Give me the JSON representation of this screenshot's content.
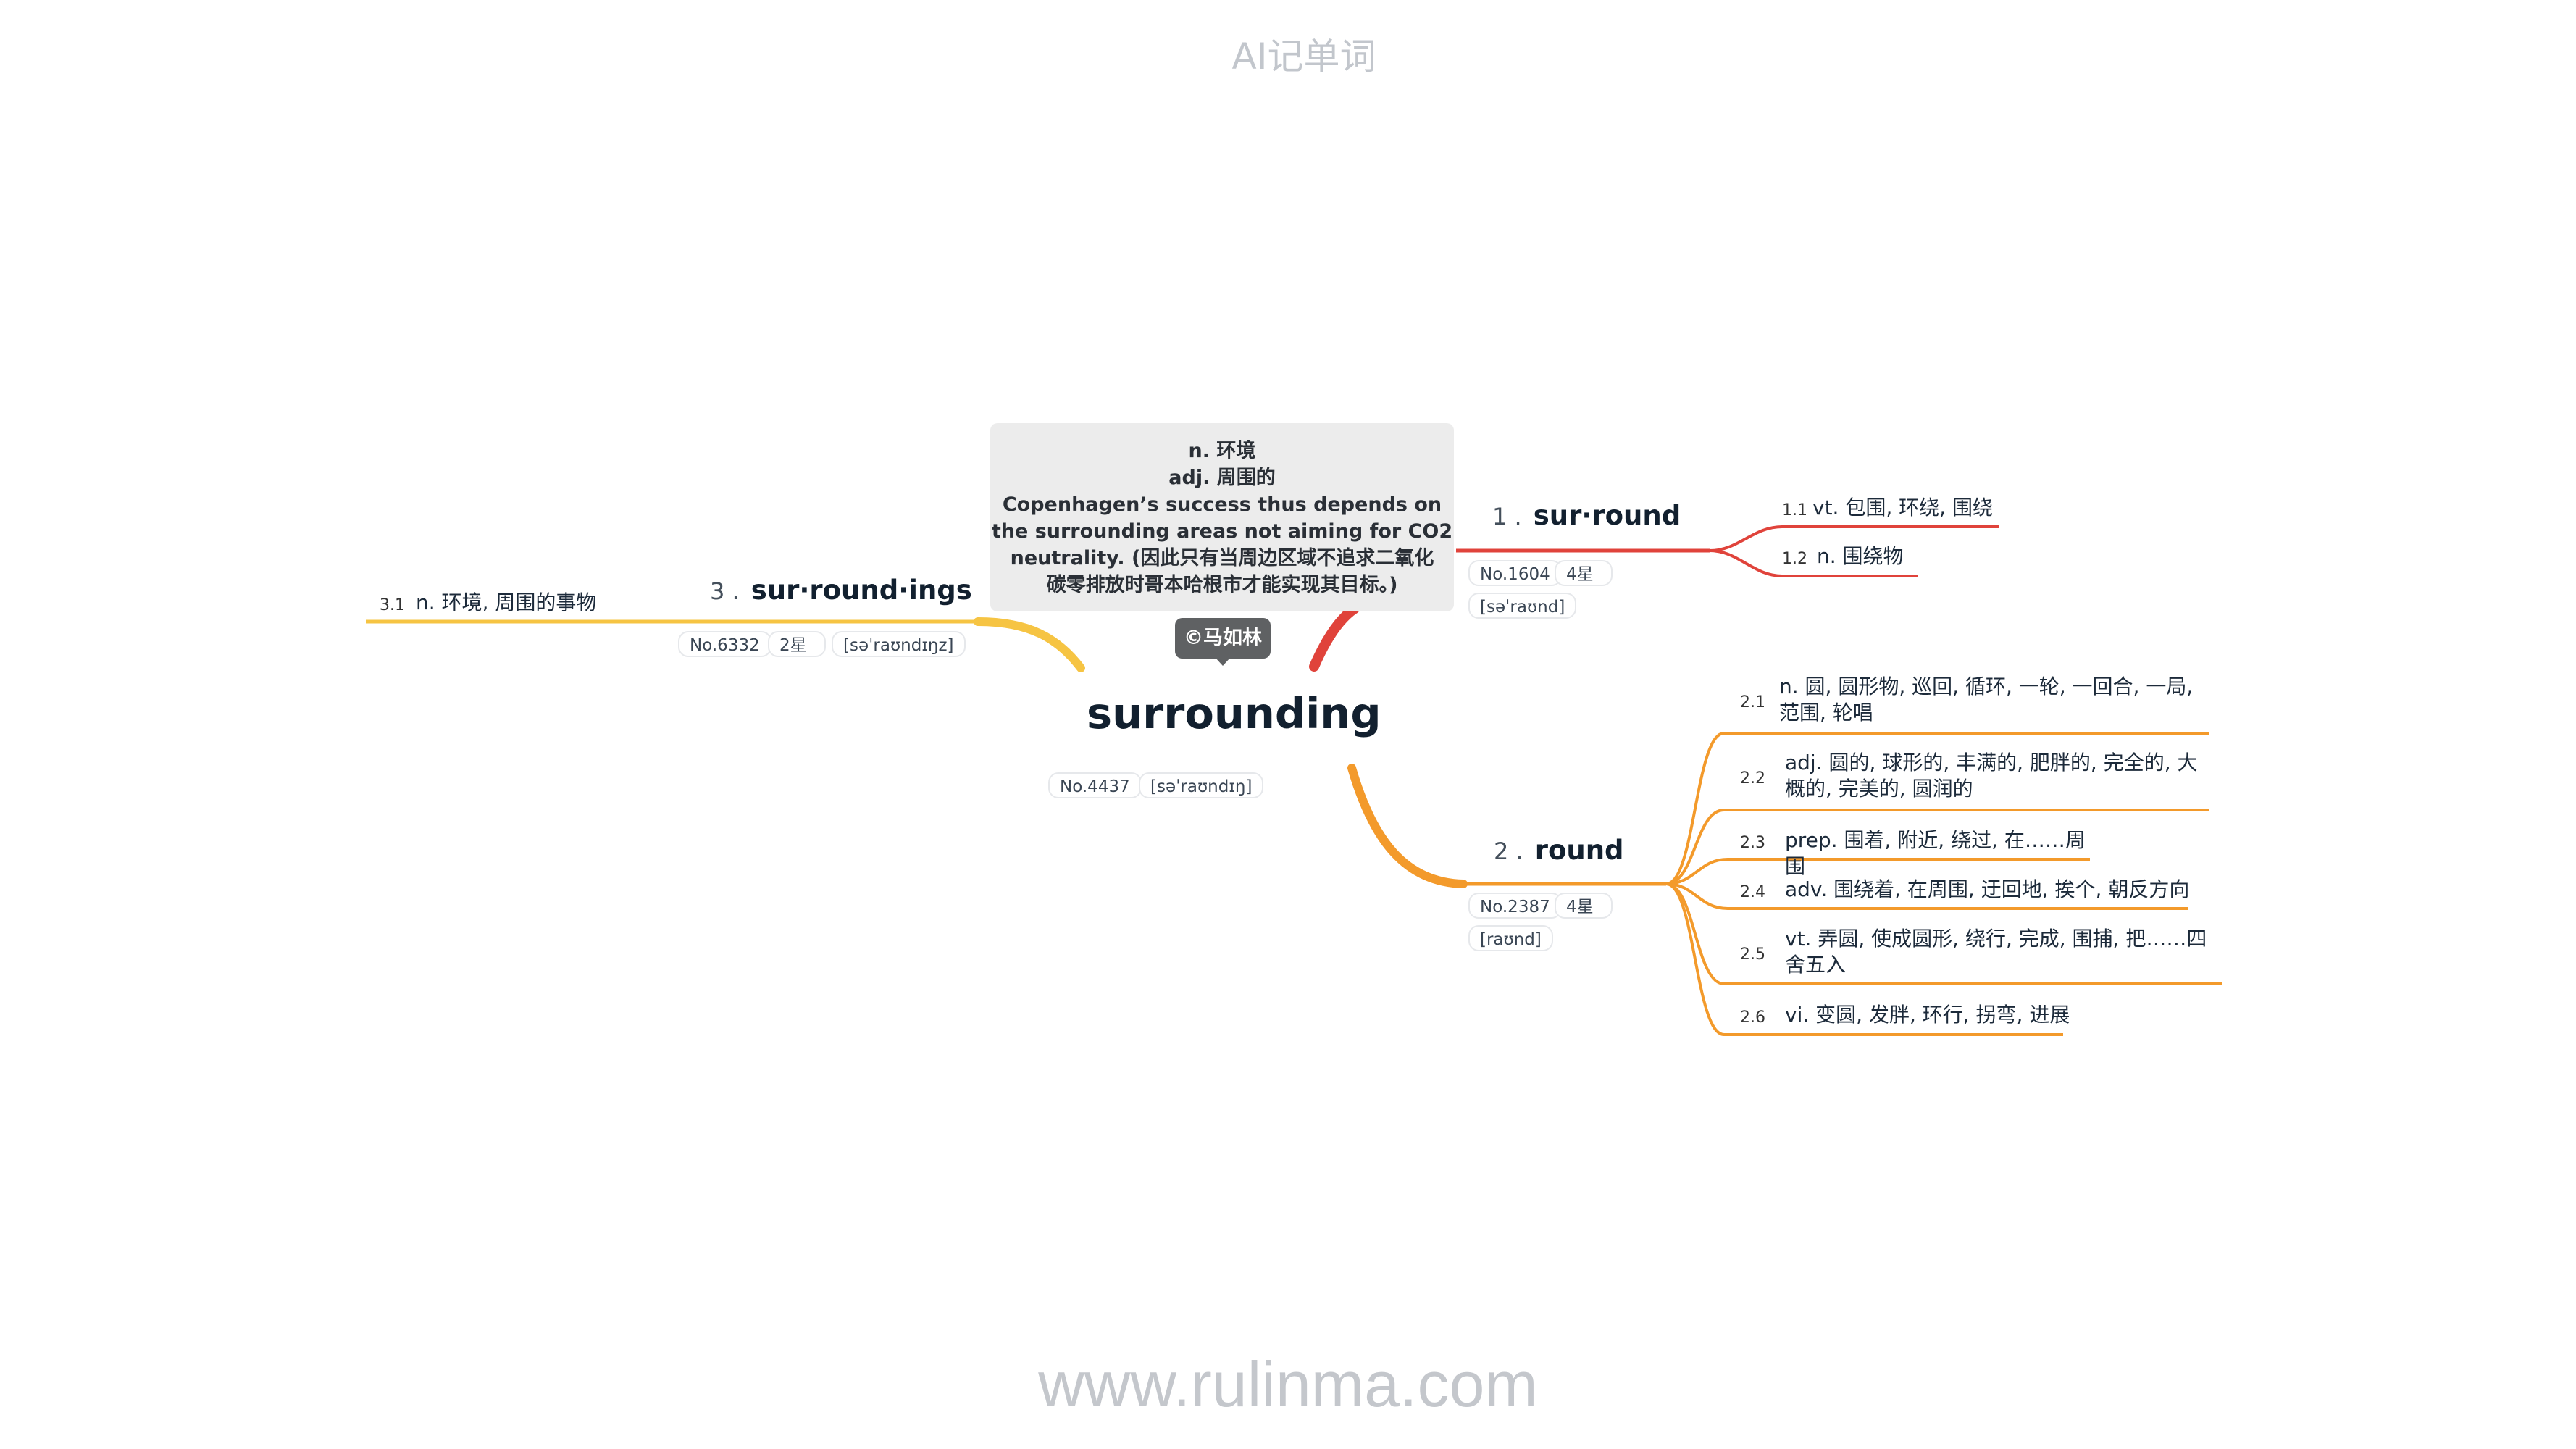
{
  "app_title": "AI记单词",
  "footer_url": "www.rulinma.com",
  "colors": {
    "red": "#e0433b",
    "orange": "#f39a2b",
    "yellow": "#f6c443"
  },
  "center": {
    "word": "surrounding",
    "number": "No.4437",
    "phonetic": "[səˈraʊndɪŋ]"
  },
  "note": {
    "lines": [
      "n. 环境",
      "adj. 周围的",
      "Copenhagen’s success thus depends on",
      "the surrounding areas not aiming for CO2",
      "neutrality. (因此只有当周边区域不追求二氧化",
      "碳零排放时哥本哈根市才能实现其目标。)"
    ]
  },
  "badge": "©马如林",
  "branches": [
    {
      "num": "1 .",
      "word": "sur·round",
      "number": "No.1604",
      "stars": "4星",
      "phonetic": "[səˈraʊnd]",
      "leaves": [
        {
          "num": "1.1",
          "text": "vt. 包围, 环绕, 围绕"
        },
        {
          "num": "1.2",
          "text": "n. 围绕物"
        }
      ]
    },
    {
      "num": "2 .",
      "word": "round",
      "number": "No.2387",
      "stars": "4星",
      "phonetic": "[raʊnd]",
      "leaves": [
        {
          "num": "2.1",
          "text": "n. 圆, 圆形物, 巡回, 循环, 一轮, 一回合, 一局, 范围, 轮唱"
        },
        {
          "num": "2.2",
          "text": "adj. 圆的, 球形的, 丰满的, 肥胖的, 完全的, 大概的, 完美的, 圆润的"
        },
        {
          "num": "2.3",
          "text": "prep. 围着, 附近, 绕过, 在……周围"
        },
        {
          "num": "2.4",
          "text": "adv. 围绕着, 在周围, 迂回地, 挨个, 朝反方向"
        },
        {
          "num": "2.5",
          "text": "vt. 弄圆, 使成圆形, 绕行, 完成, 围捕, 把……四舍五入"
        },
        {
          "num": "2.6",
          "text": "vi. 变圆, 发胖, 环行, 拐弯, 进展"
        }
      ]
    },
    {
      "num": "3 .",
      "word": "sur·round·ings",
      "number": "No.6332",
      "stars": "2星",
      "phonetic": "[səˈraʊndɪŋz]",
      "leaves": [
        {
          "num": "3.1",
          "text": "n. 环境, 周围的事物"
        }
      ]
    }
  ]
}
